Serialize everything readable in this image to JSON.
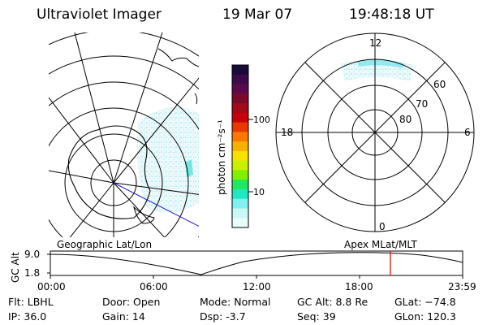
{
  "header": {
    "instrument": "Ultraviolet Imager",
    "date": "19 Mar 07",
    "time": "19:48:18 UT"
  },
  "colorbar": {
    "unit": "photon cm⁻²s⁻¹",
    "ticks": [
      "100",
      "10"
    ],
    "colors": [
      "#1a0a3a",
      "#3a0a4a",
      "#5a0a4a",
      "#7a0a2a",
      "#a00a1a",
      "#c8000a",
      "#e83800",
      "#f87800",
      "#f8b000",
      "#f8e000",
      "#c8f000",
      "#80f000",
      "#20e860",
      "#20e8c0",
      "#80f0f0",
      "#c8f8f8",
      "#e8fcfc"
    ]
  },
  "left_panel": {
    "label": "Geographic Lat/Lon"
  },
  "right_panel": {
    "label": "Apex  MLat/MLT",
    "mlt_labels": [
      "12",
      "18",
      "6",
      "0"
    ],
    "lat_labels": [
      "60",
      "70",
      "80"
    ]
  },
  "timeline": {
    "ylabel": "GC Alt",
    "y_ticks": [
      "9.0",
      "1.8"
    ],
    "x_ticks": [
      "00:00",
      "06:00",
      "12:00",
      "18:00",
      "23:59"
    ],
    "marker_color": "#e00000"
  },
  "info": {
    "filter": "Flt: LBHL",
    "ip": "IP: 36.0",
    "door": "Door: Open",
    "gain": "Gain: 14",
    "mode": "Mode: Normal",
    "dsp": "Dsp:    -3.7",
    "gc_alt": "GC Alt: 8.8 Re",
    "seq": "Seq: 39",
    "glat": "GLat: −74.8",
    "glon": "GLon: 120.3"
  }
}
